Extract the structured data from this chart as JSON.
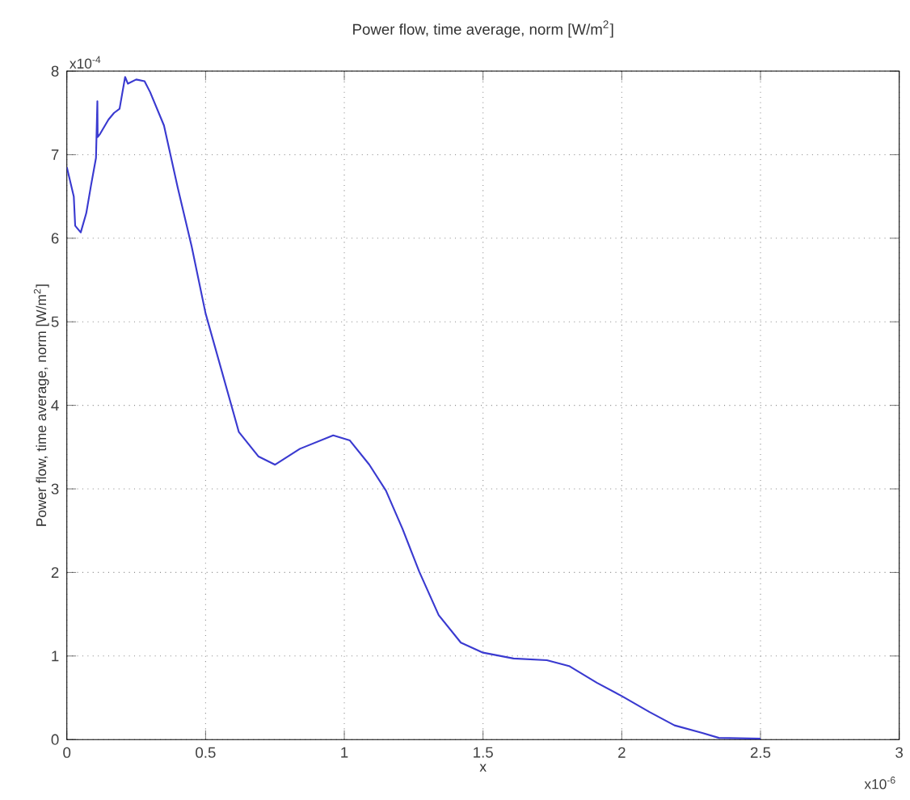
{
  "chart_data": {
    "type": "line",
    "title": "Power flow, time average, norm [W/m$^{2}$]",
    "xlabel": "x",
    "ylabel": "Power flow, time average, norm [W/m$^{2}$]",
    "annotations": [
      "x10$^{-4}$",
      "x10$^{-6}$"
    ],
    "xlim": [
      0,
      3
    ],
    "ylim": [
      0,
      8
    ],
    "xticks": [
      0,
      0.5,
      1,
      1.5,
      2,
      2.5,
      3
    ],
    "yticks": [
      0,
      1,
      2,
      3,
      4,
      5,
      6,
      7,
      8
    ],
    "grid": true,
    "series": [
      {
        "color": "#3a3ad0",
        "x": [
          0,
          0.025,
          0.03,
          0.05,
          0.07,
          0.087,
          0.105,
          0.11,
          0.111,
          0.12,
          0.15,
          0.17,
          0.19,
          0.2,
          0.21,
          0.22,
          0.25,
          0.28,
          0.3,
          0.35,
          0.4,
          0.45,
          0.5,
          0.56,
          0.62,
          0.69,
          0.75,
          0.84,
          0.96,
          1.02,
          1.09,
          1.15,
          1.21,
          1.27,
          1.34,
          1.42,
          1.5,
          1.61,
          1.73,
          1.81,
          1.91,
          2.0,
          2.1,
          2.19,
          2.29,
          2.35,
          2.5
        ],
        "values": [
          6.85,
          6.5,
          6.15,
          6.07,
          6.3,
          6.63,
          6.96,
          7.64,
          7.21,
          7.25,
          7.42,
          7.5,
          7.55,
          7.74,
          7.93,
          7.85,
          7.9,
          7.88,
          7.75,
          7.35,
          6.6,
          5.9,
          5.1,
          4.39,
          3.68,
          3.39,
          3.29,
          3.48,
          3.64,
          3.58,
          3.29,
          2.98,
          2.52,
          2.01,
          1.49,
          1.16,
          1.04,
          0.97,
          0.95,
          0.88,
          0.68,
          0.52,
          0.33,
          0.17,
          0.08,
          0.02,
          0.01
        ]
      }
    ]
  }
}
